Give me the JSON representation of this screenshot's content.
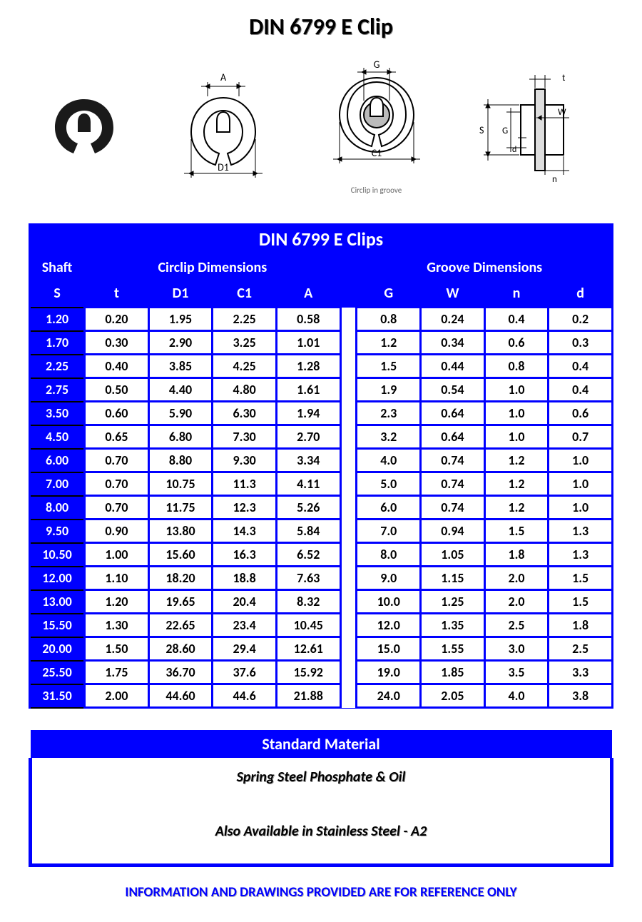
{
  "page_title": "DIN 6799 E Clip",
  "diagram": {
    "labels": {
      "A": "A",
      "D1": "D1",
      "G": "G",
      "C1": "C1",
      "S": "S",
      "W": "W",
      "t": "t",
      "d": "d",
      "n": "n"
    },
    "caption": "Circlip in groove"
  },
  "table": {
    "title": "DIN 6799 E Clips",
    "group_headers": {
      "shaft": "Shaft",
      "circlip": "Circlip Dimensions",
      "groove": "Groove Dimensions"
    },
    "columns": {
      "S": "S",
      "t": "t",
      "D1": "D1",
      "C1": "C1",
      "A": "A",
      "G": "G",
      "W": "W",
      "n": "n",
      "d": "d"
    },
    "rows": [
      {
        "S": "1.20",
        "t": "0.20",
        "D1": "1.95",
        "C1": "2.25",
        "A": "0.58",
        "G": "0.8",
        "W": "0.24",
        "n": "0.4",
        "d": "0.2"
      },
      {
        "S": "1.70",
        "t": "0.30",
        "D1": "2.90",
        "C1": "3.25",
        "A": "1.01",
        "G": "1.2",
        "W": "0.34",
        "n": "0.6",
        "d": "0.3"
      },
      {
        "S": "2.25",
        "t": "0.40",
        "D1": "3.85",
        "C1": "4.25",
        "A": "1.28",
        "G": "1.5",
        "W": "0.44",
        "n": "0.8",
        "d": "0.4"
      },
      {
        "S": "2.75",
        "t": "0.50",
        "D1": "4.40",
        "C1": "4.80",
        "A": "1.61",
        "G": "1.9",
        "W": "0.54",
        "n": "1.0",
        "d": "0.4"
      },
      {
        "S": "3.50",
        "t": "0.60",
        "D1": "5.90",
        "C1": "6.30",
        "A": "1.94",
        "G": "2.3",
        "W": "0.64",
        "n": "1.0",
        "d": "0.6"
      },
      {
        "S": "4.50",
        "t": "0.65",
        "D1": "6.80",
        "C1": "7.30",
        "A": "2.70",
        "G": "3.2",
        "W": "0.64",
        "n": "1.0",
        "d": "0.7"
      },
      {
        "S": "6.00",
        "t": "0.70",
        "D1": "8.80",
        "C1": "9.30",
        "A": "3.34",
        "G": "4.0",
        "W": "0.74",
        "n": "1.2",
        "d": "1.0"
      },
      {
        "S": "7.00",
        "t": "0.70",
        "D1": "10.75",
        "C1": "11.3",
        "A": "4.11",
        "G": "5.0",
        "W": "0.74",
        "n": "1.2",
        "d": "1.0"
      },
      {
        "S": "8.00",
        "t": "0.70",
        "D1": "11.75",
        "C1": "12.3",
        "A": "5.26",
        "G": "6.0",
        "W": "0.74",
        "n": "1.2",
        "d": "1.0"
      },
      {
        "S": "9.50",
        "t": "0.90",
        "D1": "13.80",
        "C1": "14.3",
        "A": "5.84",
        "G": "7.0",
        "W": "0.94",
        "n": "1.5",
        "d": "1.3"
      },
      {
        "S": "10.50",
        "t": "1.00",
        "D1": "15.60",
        "C1": "16.3",
        "A": "6.52",
        "G": "8.0",
        "W": "1.05",
        "n": "1.8",
        "d": "1.3"
      },
      {
        "S": "12.00",
        "t": "1.10",
        "D1": "18.20",
        "C1": "18.8",
        "A": "7.63",
        "G": "9.0",
        "W": "1.15",
        "n": "2.0",
        "d": "1.5"
      },
      {
        "S": "13.00",
        "t": "1.20",
        "D1": "19.65",
        "C1": "20.4",
        "A": "8.32",
        "G": "10.0",
        "W": "1.25",
        "n": "2.0",
        "d": "1.5"
      },
      {
        "S": "15.50",
        "t": "1.30",
        "D1": "22.65",
        "C1": "23.4",
        "A": "10.45",
        "G": "12.0",
        "W": "1.35",
        "n": "2.5",
        "d": "1.8"
      },
      {
        "S": "20.00",
        "t": "1.50",
        "D1": "28.60",
        "C1": "29.4",
        "A": "12.61",
        "G": "15.0",
        "W": "1.55",
        "n": "3.0",
        "d": "2.5"
      },
      {
        "S": "25.50",
        "t": "1.75",
        "D1": "36.70",
        "C1": "37.6",
        "A": "15.92",
        "G": "19.0",
        "W": "1.85",
        "n": "3.5",
        "d": "3.3"
      },
      {
        "S": "31.50",
        "t": "2.00",
        "D1": "44.60",
        "C1": "44.6",
        "A": "21.88",
        "G": "24.0",
        "W": "2.05",
        "n": "4.0",
        "d": "3.8"
      }
    ]
  },
  "material": {
    "title": "Standard Material",
    "line1": "Spring Steel Phosphate & Oil",
    "line2": "Also Available in Stainless Steel - A2"
  },
  "footer": "INFORMATION AND DRAWINGS PROVIDED ARE FOR REFERENCE ONLY",
  "colors": {
    "brand_blue": "#0000ff",
    "white": "#ffffff",
    "black": "#000000"
  }
}
